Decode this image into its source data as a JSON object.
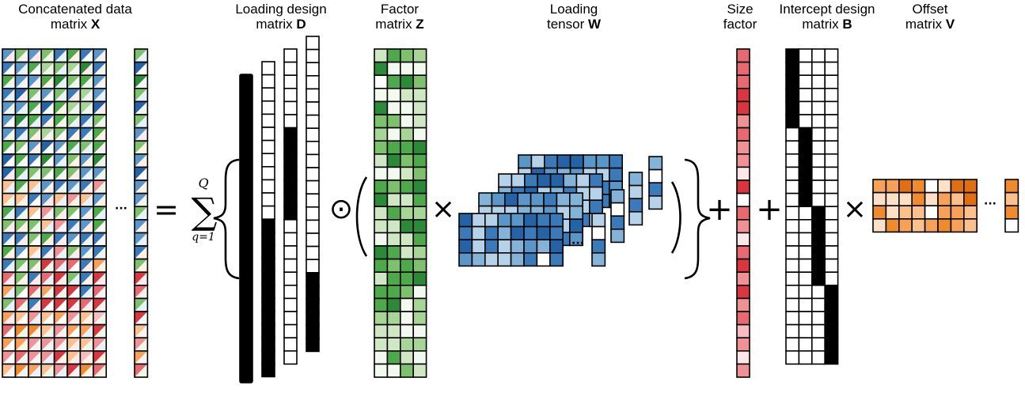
{
  "labels": {
    "x": {
      "line1": "Concatenated data",
      "line2_prefix": "matrix ",
      "line2_bold": "X"
    },
    "d": {
      "line1": "Loading design",
      "line2_prefix": "matrix ",
      "line2_bold": "D"
    },
    "z": {
      "line1": "Factor",
      "line2_prefix": "matrix ",
      "line2_bold": "Z"
    },
    "w": {
      "line1": "Loading",
      "line2_prefix": "tensor ",
      "line2_bold": "W"
    },
    "s": {
      "line1": "Size",
      "line2": "factor"
    },
    "b": {
      "line1": "Intercept design",
      "line2_prefix": "matrix ",
      "line2_bold": "B"
    },
    "v": {
      "line1": "Offset",
      "line2_prefix": "matrix ",
      "line2_bold": "V"
    }
  },
  "math": {
    "sum_upper": "Q",
    "sum_lower": "q=1",
    "equals": "=",
    "sigma": "∑",
    "odot": "⊙",
    "times": "×",
    "plus": "+",
    "ellipsis": "···"
  },
  "colors": {
    "green": [
      "#f2f9ee",
      "#cfe8c3",
      "#a6d596",
      "#7dc16d",
      "#4ea94a",
      "#2a8a38"
    ],
    "blue": [
      "#ffffff",
      "#b6d2e8",
      "#84b3d8",
      "#5a96c8",
      "#3a7ab8",
      "#2464a6"
    ],
    "red": [
      "#fde7e7",
      "#f7bcbd",
      "#ef9296",
      "#e66a70",
      "#d8373f"
    ],
    "orange": [
      "#ffffff",
      "#fde1c6",
      "#fbc08b",
      "#f6a157",
      "#ef8a2d",
      "#e06f12"
    ]
  }
}
